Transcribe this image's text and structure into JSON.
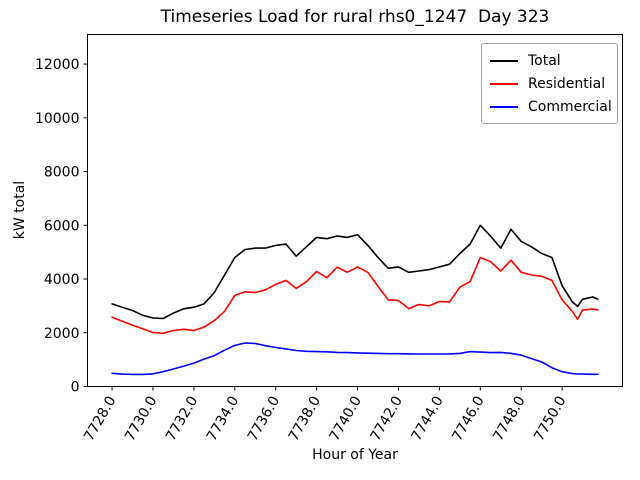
{
  "chart_data": {
    "type": "line",
    "title": "Timeseries Load for rural rhs0_1247  Day 323",
    "xlabel": "Hour of Year",
    "ylabel": "kW total",
    "xlim": [
      7726.8,
      7752.95
    ],
    "ylim": [
      0,
      13100
    ],
    "grid": false,
    "legend_position": "upper right",
    "xticks": [
      7728,
      7730,
      7732,
      7734,
      7736,
      7738,
      7740,
      7742,
      7744,
      7746,
      7748,
      7750
    ],
    "xtick_labels": [
      "7728.0",
      "7730.0",
      "7732.0",
      "7734.0",
      "7736.0",
      "7738.0",
      "7740.0",
      "7742.0",
      "7744.0",
      "7746.0",
      "7748.0",
      "7750.0"
    ],
    "yticks": [
      0,
      2000,
      4000,
      6000,
      8000,
      10000,
      12000
    ],
    "ytick_labels": [
      "0",
      "2000",
      "4000",
      "6000",
      "8000",
      "10000",
      "12000"
    ],
    "x": [
      7728,
      7728.5,
      7729,
      7729.5,
      7730,
      7730.5,
      7731,
      7731.5,
      7732,
      7732.5,
      7733,
      7733.5,
      7734,
      7734.5,
      7735,
      7735.5,
      7736,
      7736.5,
      7737,
      7737.5,
      7738,
      7738.5,
      7739,
      7739.5,
      7740,
      7740.5,
      7741,
      7741.5,
      7742,
      7742.5,
      7743,
      7743.5,
      7744,
      7744.5,
      7745,
      7745.5,
      7746,
      7746.5,
      7747,
      7747.5,
      7748,
      7748.5,
      7749,
      7749.5,
      7750,
      7750.5,
      7750.75,
      7751,
      7751.5,
      7751.75
    ],
    "series": [
      {
        "name": "Total",
        "color": "#000000",
        "values": [
          3075,
          2950,
          2830,
          2650,
          2550,
          2530,
          2730,
          2890,
          2950,
          3075,
          3500,
          4150,
          4800,
          5100,
          5150,
          5150,
          5250,
          5300,
          4850,
          5200,
          5550,
          5500,
          5600,
          5550,
          5650,
          5250,
          4800,
          4400,
          4450,
          4250,
          4300,
          4350,
          4450,
          4550,
          4950,
          5300,
          6000,
          5600,
          5150,
          5850,
          5400,
          5200,
          4950,
          4800,
          3750,
          3150,
          2980,
          3250,
          3330,
          3250
        ]
      },
      {
        "name": "Residential",
        "color": "#ff0000",
        "values": [
          2580,
          2430,
          2280,
          2150,
          2010,
          1980,
          2085,
          2130,
          2085,
          2210,
          2450,
          2800,
          3390,
          3525,
          3500,
          3600,
          3800,
          3950,
          3650,
          3900,
          4280,
          4050,
          4440,
          4250,
          4450,
          4250,
          3725,
          3225,
          3200,
          2900,
          3050,
          3000,
          3165,
          3150,
          3700,
          3900,
          4800,
          4650,
          4300,
          4700,
          4250,
          4150,
          4100,
          3950,
          3225,
          2800,
          2500,
          2850,
          2880,
          2850
        ]
      },
      {
        "name": "Commercial",
        "color": "#0000ff",
        "values": [
          490,
          460,
          450,
          450,
          470,
          550,
          650,
          760,
          870,
          1020,
          1150,
          1350,
          1530,
          1620,
          1600,
          1520,
          1450,
          1400,
          1340,
          1310,
          1300,
          1290,
          1270,
          1260,
          1250,
          1240,
          1230,
          1220,
          1220,
          1215,
          1210,
          1210,
          1210,
          1215,
          1230,
          1300,
          1280,
          1260,
          1270,
          1230,
          1170,
          1040,
          910,
          700,
          550,
          480,
          465,
          460,
          455,
          455
        ]
      }
    ]
  },
  "legend": {
    "items": [
      {
        "label": "Total",
        "color": "#000000"
      },
      {
        "label": "Residential",
        "color": "#ff0000"
      },
      {
        "label": "Commercial",
        "color": "#0000ff"
      }
    ]
  }
}
